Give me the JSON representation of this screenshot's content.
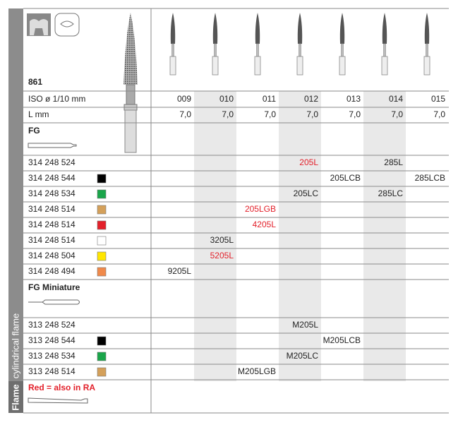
{
  "category": "Flame",
  "side_label": "cylindrical flame",
  "header": {
    "model": "861",
    "iso_label": "ISO ø 1/10 mm",
    "length_label": "L mm",
    "sizes": [
      "009",
      "010",
      "011",
      "012",
      "013",
      "014",
      "015"
    ],
    "lengths": [
      "7,0",
      "7,0",
      "7,0",
      "7,0",
      "7,0",
      "7,0",
      "7,0"
    ]
  },
  "sections": [
    {
      "title": "FG",
      "rows": [
        {
          "code": "314 248 524",
          "color": null,
          "cells": [
            null,
            null,
            null,
            {
              "text": "205L",
              "red": true
            },
            null,
            {
              "text": "285L",
              "red": false
            },
            null
          ]
        },
        {
          "code": "314 248 544",
          "color": "#000000",
          "cells": [
            null,
            null,
            null,
            null,
            {
              "text": "205LCB",
              "red": false
            },
            null,
            {
              "text": "285LCB",
              "red": false
            }
          ]
        },
        {
          "code": "314 248 534",
          "color": "#1aa54a",
          "cells": [
            null,
            null,
            null,
            {
              "text": "205LC",
              "red": false
            },
            null,
            {
              "text": "285LC",
              "red": false
            },
            null
          ]
        },
        {
          "code": "314 248 514",
          "color": "#d4a05a",
          "cells": [
            null,
            null,
            {
              "text": "205LGB",
              "red": true
            },
            null,
            null,
            null,
            null
          ]
        },
        {
          "code": "314 248 514",
          "color": "#e3202a",
          "cells": [
            null,
            null,
            {
              "text": "4205L",
              "red": true
            },
            null,
            null,
            null,
            null
          ]
        },
        {
          "code": "314 248 514",
          "color": "#ffffff",
          "cells": [
            null,
            {
              "text": "3205L",
              "red": false
            },
            null,
            null,
            null,
            null,
            null
          ]
        },
        {
          "code": "314 248 504",
          "color": "#ffe600",
          "cells": [
            null,
            {
              "text": "5205L",
              "red": true
            },
            null,
            null,
            null,
            null,
            null
          ]
        },
        {
          "code": "314 248 494",
          "color": "#f08a4b",
          "cells": [
            {
              "text": "9205L",
              "red": false
            },
            null,
            null,
            null,
            null,
            null,
            null
          ]
        }
      ]
    },
    {
      "title": "FG Miniature",
      "rows": [
        {
          "code": "313 248 524",
          "color": null,
          "cells": [
            null,
            null,
            null,
            {
              "text": "M205L",
              "red": false
            },
            null,
            null,
            null
          ]
        },
        {
          "code": "313 248 544",
          "color": "#000000",
          "cells": [
            null,
            null,
            null,
            null,
            {
              "text": "M205LCB",
              "red": false
            },
            null,
            null
          ]
        },
        {
          "code": "313 248 534",
          "color": "#1aa54a",
          "cells": [
            null,
            null,
            null,
            {
              "text": "M205LC",
              "red": false
            },
            null,
            null,
            null
          ]
        },
        {
          "code": "313 248 514",
          "color": "#d4a05a",
          "cells": [
            null,
            null,
            {
              "text": "M205LGB",
              "red": false
            },
            null,
            null,
            null,
            null
          ]
        }
      ]
    }
  ],
  "note": "Red = also in RA"
}
